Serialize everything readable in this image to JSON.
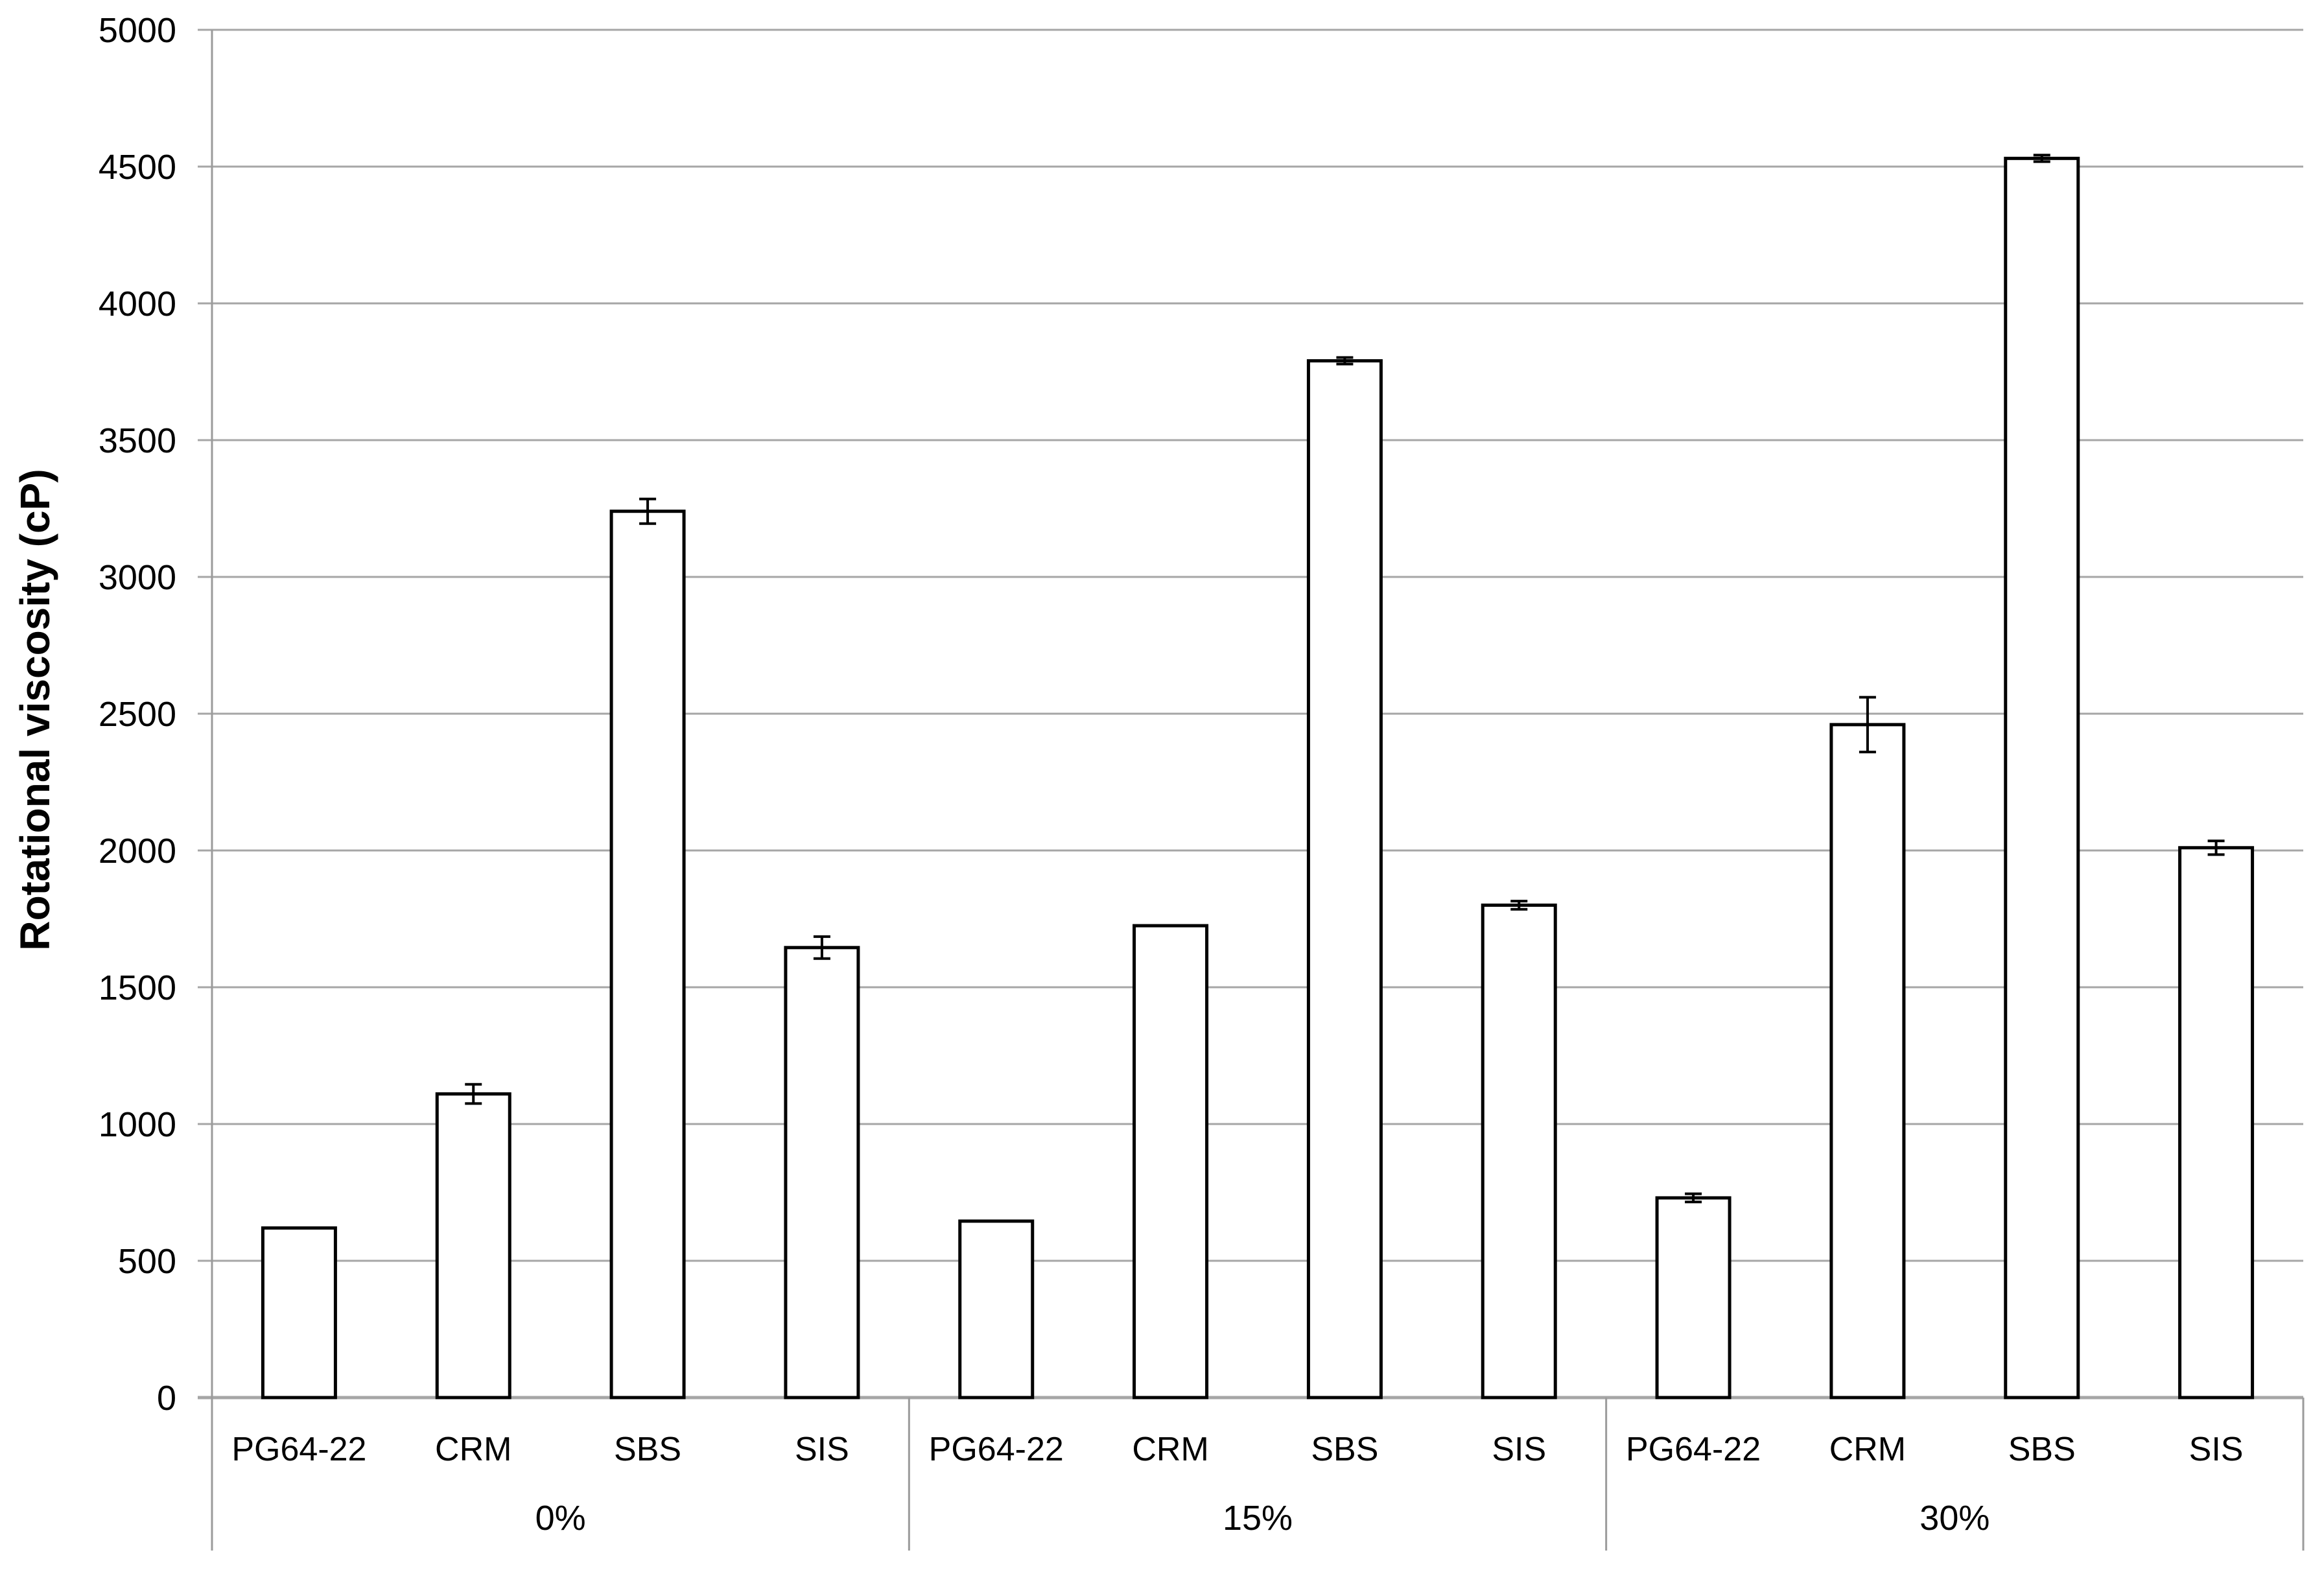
{
  "chart_data": {
    "type": "bar",
    "title": "",
    "xlabel": "",
    "ylabel": "Rotational viscosity (cP)",
    "ylim": [
      0,
      5000
    ],
    "ytick_step": 500,
    "yticks": [
      0,
      500,
      1000,
      1500,
      2000,
      2500,
      3000,
      3500,
      4000,
      4500,
      5000
    ],
    "grid": "horizontal",
    "legend": "none",
    "categories_per_group": [
      "PG64-22",
      "CRM",
      "SBS",
      "SIS"
    ],
    "groups": [
      {
        "label": "0%",
        "values": [
          620,
          1110,
          3240,
          1645
        ],
        "errors": [
          0,
          35,
          45,
          40
        ]
      },
      {
        "label": "15%",
        "values": [
          645,
          1725,
          3790,
          1800
        ],
        "errors": [
          0,
          0,
          12,
          15
        ]
      },
      {
        "label": "30%",
        "values": [
          730,
          2460,
          4530,
          2010
        ],
        "errors": [
          15,
          100,
          12,
          25
        ]
      }
    ],
    "colors": {
      "background": "#ffffff",
      "bar_fill": "#ffffff",
      "bar_stroke": "#000000",
      "error_bar": "#000000",
      "grid": "#a6a6a6",
      "axis": "#9b9b9b",
      "text": "#000000"
    }
  }
}
